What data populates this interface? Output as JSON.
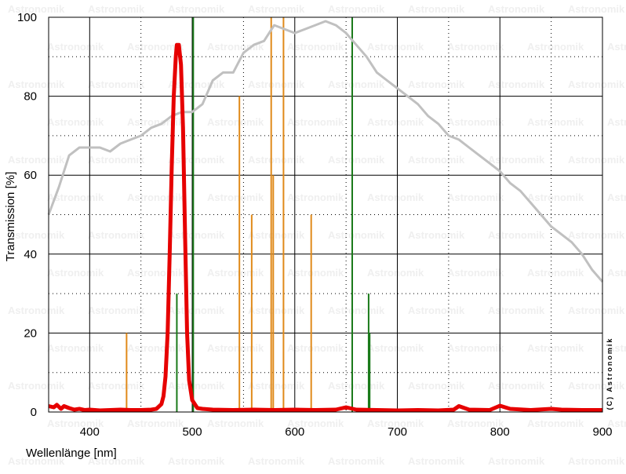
{
  "chart_data": {
    "type": "line",
    "xlabel": "Wellenlänge [nm]",
    "ylabel": "Transmission [%]",
    "xlim": [
      360,
      900
    ],
    "ylim": [
      0,
      100
    ],
    "x_ticks": [
      400,
      500,
      600,
      700,
      800,
      900
    ],
    "y_ticks": [
      0,
      20,
      40,
      60,
      80,
      100
    ],
    "grid": true,
    "copyright": "(C) Astronomik",
    "watermark_text": "Astronomik",
    "colors": {
      "filter": "#e60000",
      "sensor": "#c0c0c0",
      "orange_lines": "#e08a1a",
      "green_lines": "#1a7a1a",
      "grid_major": "#000000",
      "grid_minor": "#000000"
    },
    "series": [
      {
        "x": [
          360,
          365,
          368,
          372,
          375,
          380,
          385,
          390,
          395,
          400,
          410,
          420,
          430,
          440,
          450,
          460,
          465,
          470,
          472,
          474,
          476,
          478,
          480,
          482,
          484,
          485,
          487,
          489,
          491,
          493,
          495,
          497,
          500,
          505,
          510,
          520,
          540,
          560,
          580,
          600,
          620,
          640,
          650,
          660,
          680,
          700,
          720,
          740,
          755,
          760,
          770,
          790,
          800,
          810,
          830,
          850,
          860,
          880,
          900
        ],
        "y": [
          1.5,
          1.2,
          1.8,
          0.8,
          1.5,
          1.0,
          0.6,
          0.8,
          0.5,
          0.6,
          0.4,
          0.5,
          0.6,
          0.5,
          0.5,
          0.6,
          0.8,
          2,
          4,
          9,
          20,
          40,
          62,
          80,
          90,
          93,
          93,
          88,
          72,
          45,
          20,
          8,
          3,
          1,
          0.8,
          0.6,
          0.5,
          0.6,
          0.5,
          0.6,
          0.5,
          0.6,
          1.2,
          0.6,
          0.5,
          0.4,
          0.5,
          0.4,
          0.6,
          1.5,
          0.6,
          0.5,
          1.6,
          0.8,
          0.5,
          0.8,
          0.6,
          0.5,
          0.5
        ]
      },
      {
        "x": [
          360,
          370,
          380,
          390,
          400,
          410,
          420,
          430,
          440,
          450,
          460,
          470,
          480,
          490,
          500,
          510,
          520,
          530,
          540,
          550,
          560,
          570,
          575,
          580,
          590,
          600,
          610,
          620,
          630,
          640,
          650,
          660,
          670,
          680,
          690,
          700,
          710,
          720,
          730,
          740,
          750,
          760,
          770,
          780,
          790,
          800,
          810,
          820,
          830,
          840,
          850,
          860,
          870,
          880,
          890,
          900
        ],
        "y": [
          50,
          57,
          65,
          67,
          67,
          67,
          66,
          68,
          69,
          70,
          72,
          73,
          75,
          76,
          76,
          78,
          84,
          86,
          86,
          91,
          93,
          94,
          96,
          98,
          97,
          96,
          97,
          98,
          99,
          98,
          96,
          93,
          90,
          86,
          84,
          82,
          80,
          78,
          75,
          73,
          70,
          69,
          67,
          65,
          63,
          61,
          58,
          56,
          53,
          50,
          47,
          45,
          43,
          40,
          36,
          33
        ]
      }
    ],
    "emission_lines": [
      {
        "wavelength": 436,
        "height": 20,
        "color": "orange"
      },
      {
        "wavelength": 485,
        "height": 30,
        "color": "green"
      },
      {
        "wavelength": 501,
        "height": 100,
        "color": "green"
      },
      {
        "wavelength": 546,
        "height": 80,
        "color": "orange"
      },
      {
        "wavelength": 558,
        "height": 50,
        "color": "orange"
      },
      {
        "wavelength": 577,
        "height": 100,
        "color": "orange"
      },
      {
        "wavelength": 579,
        "height": 60,
        "color": "orange"
      },
      {
        "wavelength": 589,
        "height": 100,
        "color": "orange"
      },
      {
        "wavelength": 616,
        "height": 50,
        "color": "orange"
      },
      {
        "wavelength": 656,
        "height": 100,
        "color": "green"
      },
      {
        "wavelength": 672,
        "height": 30,
        "color": "green"
      },
      {
        "wavelength": 673,
        "height": 20,
        "color": "green"
      }
    ]
  }
}
